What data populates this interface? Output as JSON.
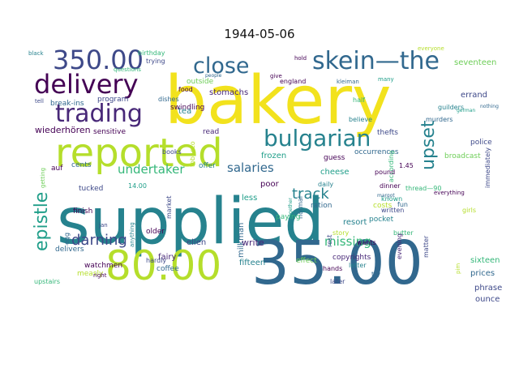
{
  "title": "1944-05-06",
  "palette": {
    "yellow": "#f2e21d",
    "lime": "#b5de2b",
    "green": "#6ece58",
    "teal_green": "#35b779",
    "teal": "#1f9e89",
    "blue_teal": "#26828e",
    "blue": "#31688e",
    "indigo": "#3e4989",
    "purple": "#482878",
    "dark": "#440154"
  },
  "words": [
    {
      "text": "bakery",
      "color": "yellow"
    },
    {
      "text": "supplied",
      "color": "blue_teal"
    },
    {
      "text": "35.00",
      "color": "blue"
    },
    {
      "text": "80.00",
      "color": "lime"
    },
    {
      "text": "reported",
      "color": "lime"
    },
    {
      "text": "350.00",
      "color": "indigo"
    },
    {
      "text": "delivery",
      "color": "dark"
    },
    {
      "text": "trading",
      "color": "purple"
    },
    {
      "text": "skein—the",
      "color": "blue"
    },
    {
      "text": "close",
      "color": "blue"
    },
    {
      "text": "bulgarian",
      "color": "blue_teal"
    },
    {
      "text": "upset",
      "color": "blue_teal"
    },
    {
      "text": "epistle",
      "color": "teal"
    },
    {
      "text": "darning",
      "color": "indigo"
    },
    {
      "text": "undertaker",
      "color": "teal_green"
    },
    {
      "text": "salaries",
      "color": "blue"
    },
    {
      "text": "track",
      "color": "blue_teal"
    },
    {
      "text": "missing",
      "color": "teal_green"
    },
    {
      "text": "wiederhören",
      "color": "dark"
    },
    {
      "text": "break-ins",
      "color": "blue"
    },
    {
      "text": "program",
      "color": "indigo"
    },
    {
      "text": "stomachs",
      "color": "purple"
    },
    {
      "text": "outside",
      "color": "green"
    },
    {
      "text": "swindling",
      "color": "dark"
    },
    {
      "text": "tea",
      "color": "blue_teal"
    },
    {
      "text": "sensitive",
      "color": "dark"
    },
    {
      "text": "thefts",
      "color": "indigo"
    },
    {
      "text": "believe",
      "color": "blue_teal"
    },
    {
      "text": "occurrences",
      "color": "blue"
    },
    {
      "text": "according",
      "color": "teal_green"
    },
    {
      "text": "murders",
      "color": "blue"
    },
    {
      "text": "guilders",
      "color": "blue_teal"
    },
    {
      "text": "errand",
      "color": "indigo"
    },
    {
      "text": "seventeen",
      "color": "green"
    },
    {
      "text": "police",
      "color": "indigo"
    },
    {
      "text": "broadcast",
      "color": "green"
    },
    {
      "text": "thread—90",
      "color": "teal_green"
    },
    {
      "text": "frozen",
      "color": "teal"
    },
    {
      "text": "guess",
      "color": "dark"
    },
    {
      "text": "cheese",
      "color": "teal"
    },
    {
      "text": "daily",
      "color": "blue_teal"
    },
    {
      "text": "pound",
      "color": "dark"
    },
    {
      "text": "resort",
      "color": "blue_teal"
    },
    {
      "text": "1.45",
      "color": "dark"
    },
    {
      "text": "costs",
      "color": "lime"
    },
    {
      "text": "butter",
      "color": "teal_green"
    },
    {
      "text": "pocket",
      "color": "blue_teal"
    },
    {
      "text": "ration",
      "color": "blue"
    },
    {
      "text": "normal",
      "color": "blue"
    },
    {
      "text": "milkman",
      "color": "blue"
    },
    {
      "text": "paying",
      "color": "teal_green"
    },
    {
      "text": "poor",
      "color": "dark"
    },
    {
      "text": "less",
      "color": "teal"
    },
    {
      "text": "write",
      "color": "purple"
    },
    {
      "text": "fifteen",
      "color": "blue_teal"
    },
    {
      "text": "ellen",
      "color": "indigo"
    },
    {
      "text": "older",
      "color": "dark"
    },
    {
      "text": "fairy",
      "color": "purple"
    },
    {
      "text": "coffee",
      "color": "blue"
    },
    {
      "text": "market",
      "color": "indigo"
    },
    {
      "text": "tucked",
      "color": "indigo"
    },
    {
      "text": "finish",
      "color": "dark"
    },
    {
      "text": "egg",
      "color": "blue"
    },
    {
      "text": "delivers",
      "color": "blue"
    },
    {
      "text": "watchmen",
      "color": "dark"
    },
    {
      "text": "measly",
      "color": "lime"
    },
    {
      "text": "cents",
      "color": "blue"
    },
    {
      "text": "auf",
      "color": "dark"
    },
    {
      "text": "14.00",
      "color": "teal"
    },
    {
      "text": "offer",
      "color": "blue_teal"
    },
    {
      "text": "books",
      "color": "indigo"
    },
    {
      "text": "read",
      "color": "purple"
    },
    {
      "text": "sixteen",
      "color": "teal_green"
    },
    {
      "text": "prices",
      "color": "blue"
    },
    {
      "text": "phrase",
      "color": "indigo"
    },
    {
      "text": "ounce",
      "color": "indigo"
    },
    {
      "text": "copyrights",
      "color": "purple"
    },
    {
      "text": "effect",
      "color": "green"
    },
    {
      "text": "wants",
      "color": "dark"
    },
    {
      "text": "story",
      "color": "lime"
    },
    {
      "text": "letter",
      "color": "blue_teal"
    },
    {
      "text": "written",
      "color": "indigo"
    },
    {
      "text": "known",
      "color": "teal"
    },
    {
      "text": "dinner",
      "color": "dark"
    },
    {
      "text": "fun",
      "color": "blue"
    },
    {
      "text": "hands",
      "color": "dark"
    },
    {
      "text": "later",
      "color": "indigo"
    },
    {
      "text": "try",
      "color": "blue"
    },
    {
      "text": "rest",
      "color": "indigo"
    },
    {
      "text": "evening",
      "color": "purple"
    },
    {
      "text": "matter",
      "color": "indigo"
    },
    {
      "text": "girls",
      "color": "lime"
    },
    {
      "text": "immediately",
      "color": "indigo"
    },
    {
      "text": "everything",
      "color": "dark"
    },
    {
      "text": "tobacco",
      "color": "lime"
    },
    {
      "text": "food",
      "color": "dark"
    },
    {
      "text": "dishes",
      "color": "blue"
    },
    {
      "text": "tell",
      "color": "indigo"
    },
    {
      "text": "black",
      "color": "blue_teal"
    },
    {
      "text": "birthday",
      "color": "teal_green"
    },
    {
      "text": "trying",
      "color": "indigo"
    },
    {
      "text": "questions",
      "color": "teal_green"
    },
    {
      "text": "england",
      "color": "dark"
    },
    {
      "text": "kleiman",
      "color": "blue"
    },
    {
      "text": "everyone",
      "color": "lime"
    },
    {
      "text": "hold",
      "color": "dark"
    },
    {
      "text": "give",
      "color": "dark"
    },
    {
      "text": "half",
      "color": "teal_green"
    },
    {
      "text": "many",
      "color": "teal"
    },
    {
      "text": "german",
      "color": "teal"
    },
    {
      "text": "nothing",
      "color": "blue"
    },
    {
      "text": "upstairs",
      "color": "teal_green"
    },
    {
      "text": "right",
      "color": "dark"
    },
    {
      "text": "jan",
      "color": "indigo"
    },
    {
      "text": "getting",
      "color": "green"
    },
    {
      "text": "people",
      "color": "blue"
    },
    {
      "text": "pim",
      "color": "lime"
    },
    {
      "text": "margot",
      "color": "blue"
    },
    {
      "text": "together",
      "color": "teal"
    },
    {
      "text": "anything",
      "color": "blue_teal"
    },
    {
      "text": "hardly",
      "color": "indigo"
    }
  ]
}
